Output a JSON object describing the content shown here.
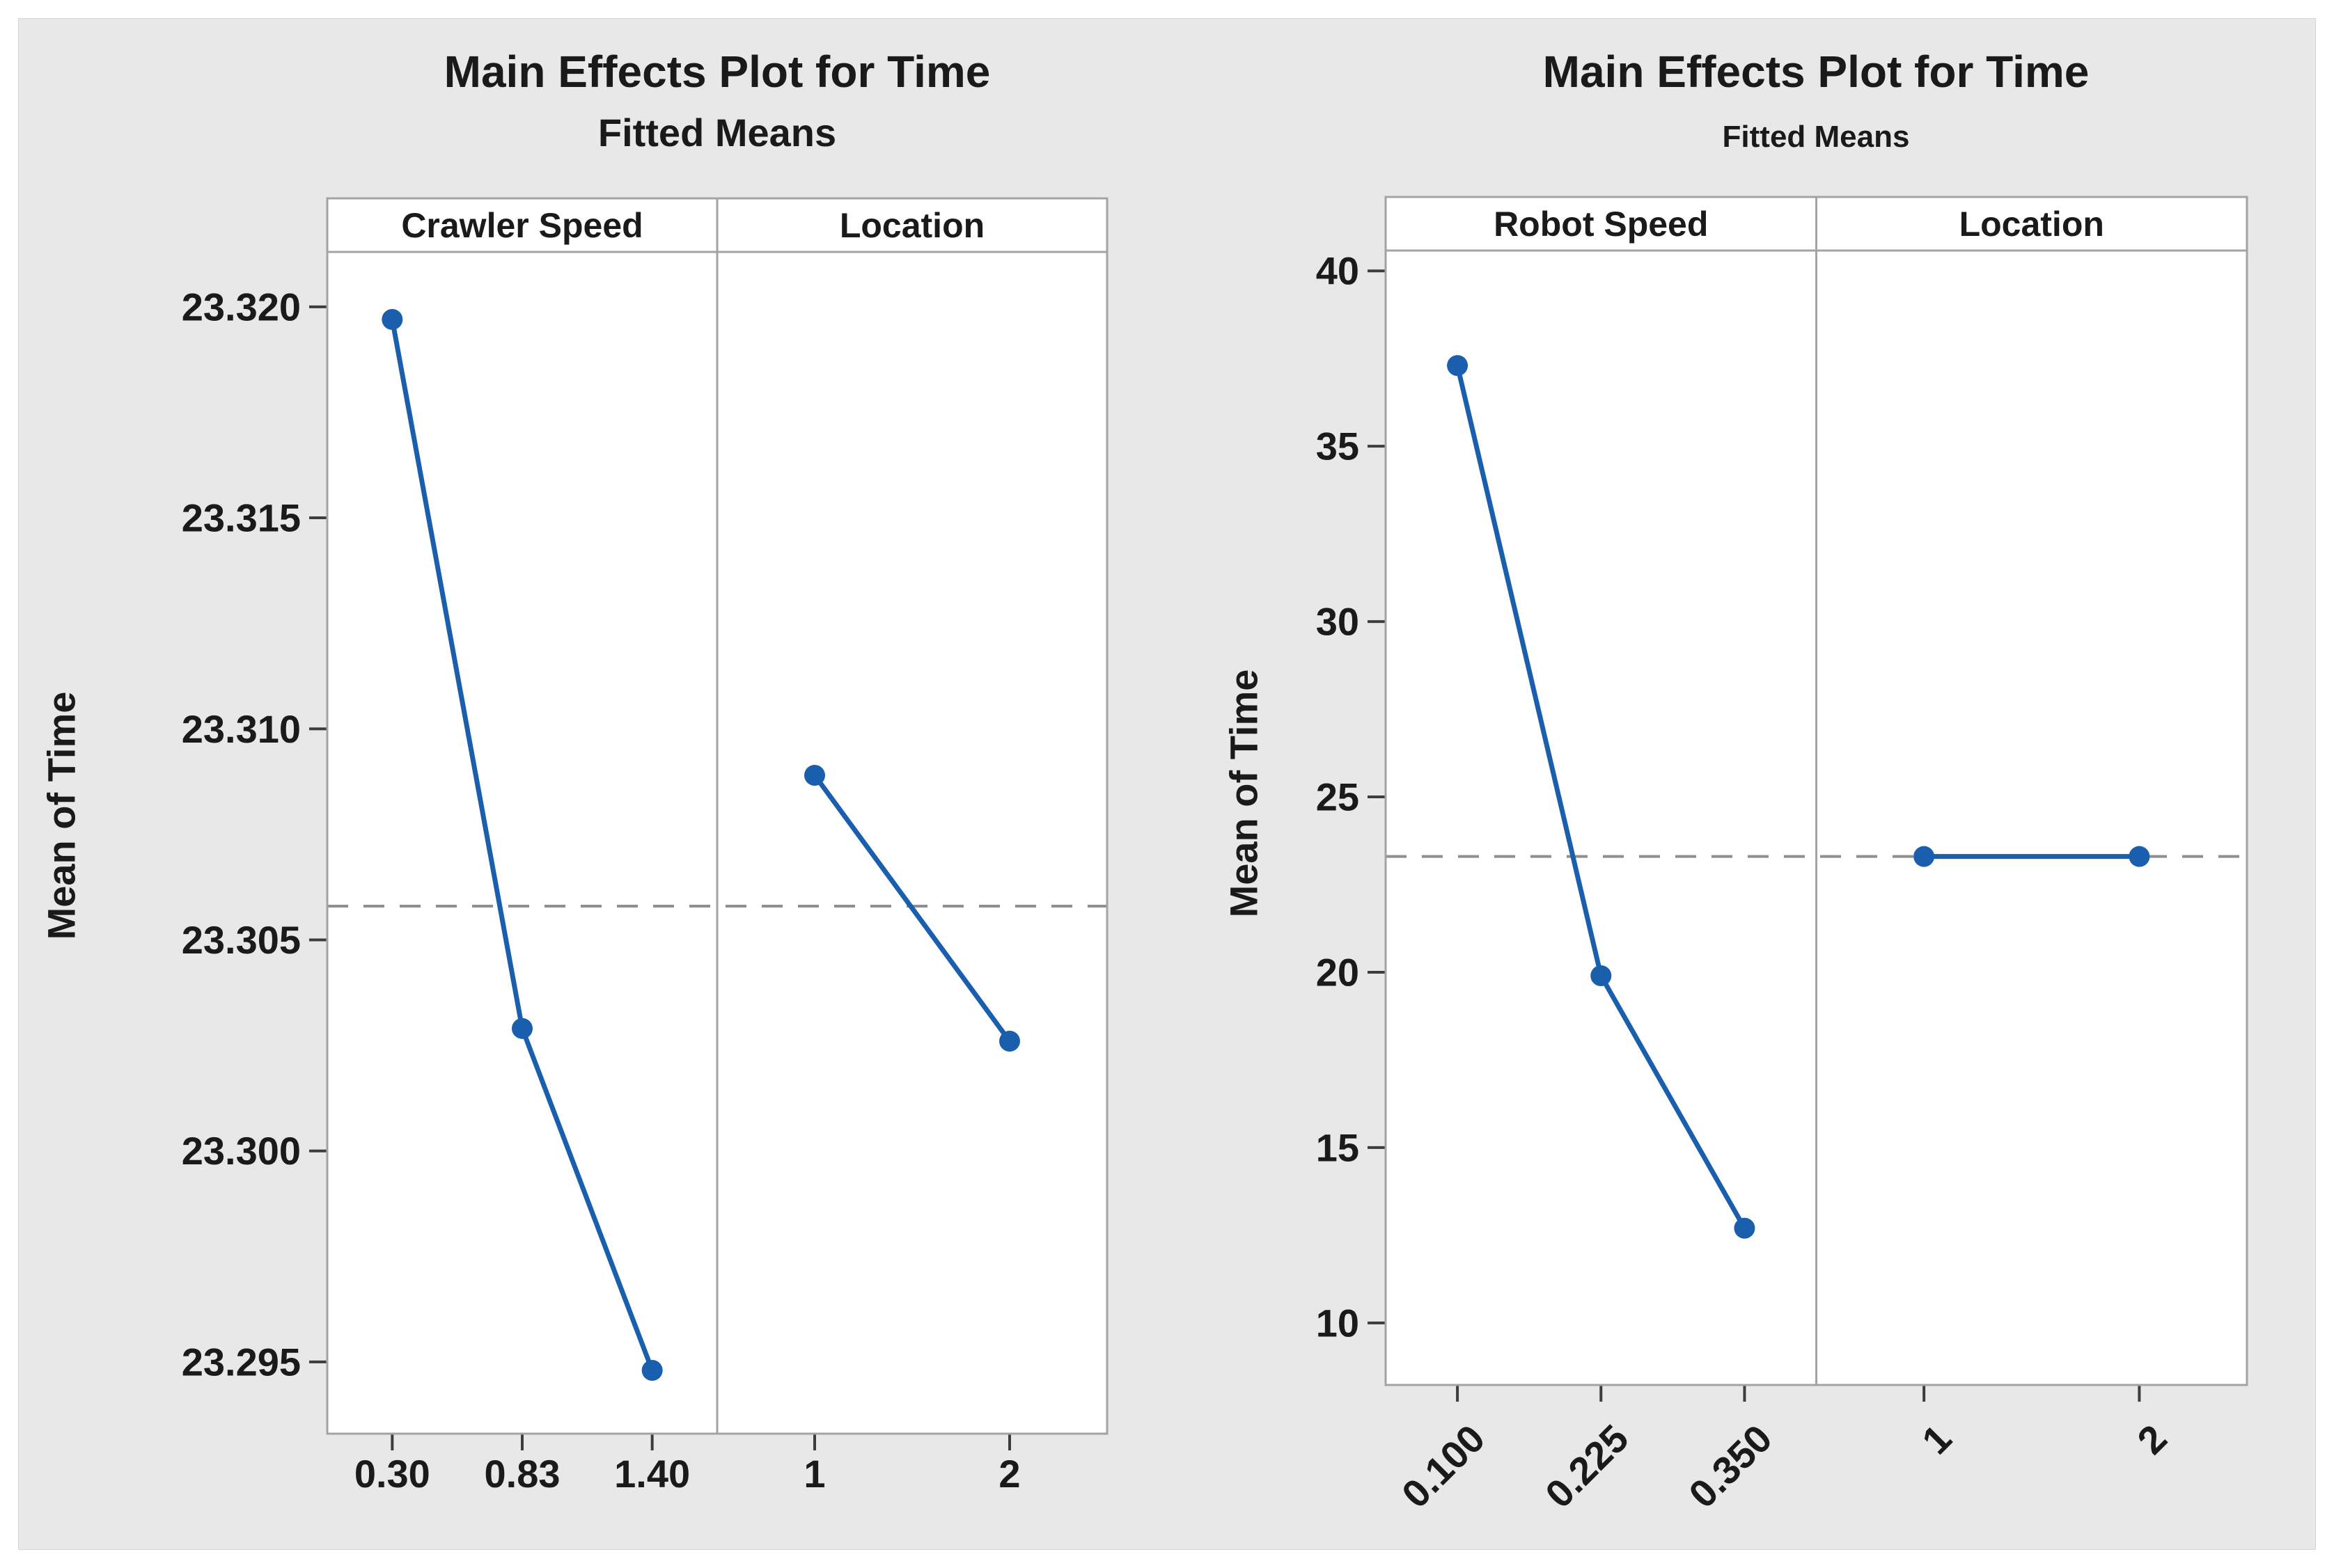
{
  "figure": {
    "colors": {
      "background": "#e8e8e8",
      "panel_fill": "#ffffff",
      "panel_border": "#a3a3a3",
      "line": "#1a5fae",
      "marker": "#1a5fae",
      "reference_line": "#8f8f8f",
      "tick_mark": "#3d3d3d",
      "text": "#1a1a1a"
    }
  },
  "chart_data": [
    {
      "type": "line",
      "title": "Main Effects Plot for Time",
      "subtitle": "Fitted Means",
      "ylabel": "Mean of Time",
      "ylim": [
        23.2933,
        23.3213
      ],
      "yticks": [
        23.32,
        23.315,
        23.31,
        23.305,
        23.3,
        23.295
      ],
      "ytick_labels": [
        "23.320",
        "23.315",
        "23.310",
        "23.305",
        "23.300",
        "23.295"
      ],
      "reference_mean": 23.3058,
      "grid": false,
      "legend": "none",
      "xtick_rotation": 0,
      "panels": [
        {
          "header": "Crawler Speed",
          "categories": [
            "0.30",
            "0.83",
            "1.40"
          ],
          "values": [
            23.3197,
            23.3029,
            23.2948
          ]
        },
        {
          "header": "Location",
          "categories": [
            "1",
            "2"
          ],
          "values": [
            23.3089,
            23.3026
          ]
        }
      ]
    },
    {
      "type": "line",
      "title": "Main Effects Plot for Time",
      "subtitle": "Fitted Means",
      "ylabel": "Mean of Time",
      "ylim": [
        8.23,
        40.58
      ],
      "yticks": [
        40,
        35,
        30,
        25,
        20,
        15,
        10
      ],
      "ytick_labels": [
        "40",
        "35",
        "30",
        "25",
        "20",
        "15",
        "10"
      ],
      "reference_mean": 23.3,
      "grid": false,
      "legend": "none",
      "xtick_rotation": 45,
      "panels": [
        {
          "header": "Robot Speed",
          "categories": [
            "0.100",
            "0.225",
            "0.350"
          ],
          "values": [
            37.3,
            19.9,
            12.7
          ]
        },
        {
          "header": "Location",
          "categories": [
            "1",
            "2"
          ],
          "values": [
            23.3,
            23.3
          ]
        }
      ]
    }
  ]
}
